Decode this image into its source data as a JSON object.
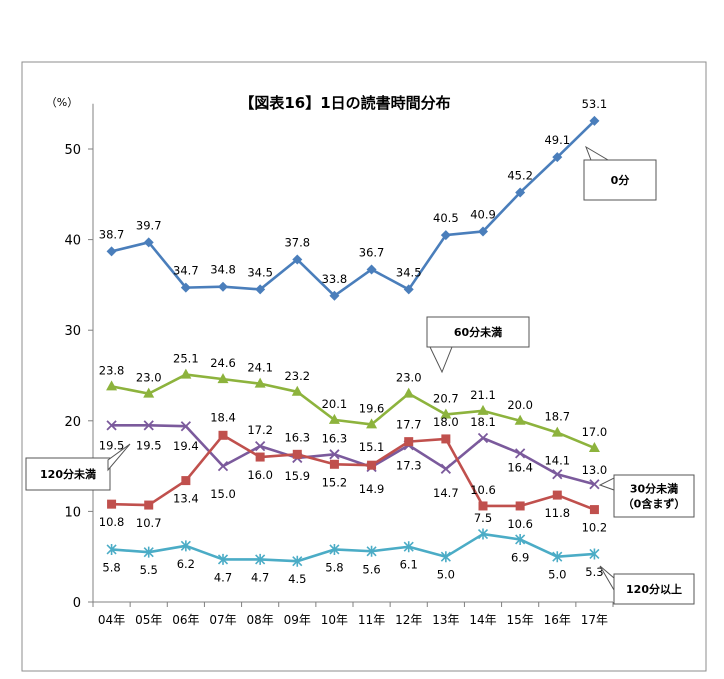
{
  "chart_data": {
    "type": "line",
    "title": "【図表16】1日の読書時間分布",
    "y_unit_label": "（%）",
    "ylim": [
      0,
      55
    ],
    "yticks": [
      0,
      10,
      20,
      30,
      40,
      50
    ],
    "grid": false,
    "categories": [
      "04年",
      "05年",
      "06年",
      "07年",
      "08年",
      "09年",
      "10年",
      "11年",
      "12年",
      "13年",
      "14年",
      "15年",
      "16年",
      "17年"
    ],
    "series": [
      {
        "name": "0分",
        "color": "#4a7ebb",
        "marker": "diamond",
        "values": [
          38.7,
          39.7,
          34.7,
          34.8,
          34.5,
          37.8,
          33.8,
          36.7,
          34.5,
          40.5,
          40.9,
          45.2,
          49.1,
          53.1
        ]
      },
      {
        "name": "60分未満",
        "color": "#8db33d",
        "marker": "triangle",
        "values": [
          23.8,
          23.0,
          25.1,
          24.6,
          24.1,
          23.2,
          20.1,
          19.6,
          23.0,
          20.7,
          21.1,
          20.0,
          18.7,
          17.0
        ]
      },
      {
        "name": "120分未満",
        "color": "#7b5a9c",
        "marker": "x",
        "values": [
          19.5,
          19.5,
          19.4,
          15.0,
          17.2,
          15.9,
          16.3,
          14.9,
          17.3,
          14.7,
          18.1,
          16.4,
          14.1,
          13.0
        ]
      },
      {
        "name": "30分未満\n（0含まず）",
        "color": "#c0504d",
        "marker": "square",
        "values": [
          10.8,
          10.7,
          13.4,
          18.4,
          16.0,
          16.3,
          15.2,
          15.1,
          17.7,
          18.0,
          10.6,
          10.6,
          11.8,
          10.2
        ]
      },
      {
        "name": "120分以上",
        "color": "#4bacc6",
        "marker": "asterisk",
        "values": [
          5.8,
          5.5,
          6.2,
          4.7,
          4.7,
          4.5,
          5.8,
          5.6,
          6.1,
          5.0,
          7.5,
          6.9,
          5.0,
          5.3
        ]
      }
    ]
  }
}
